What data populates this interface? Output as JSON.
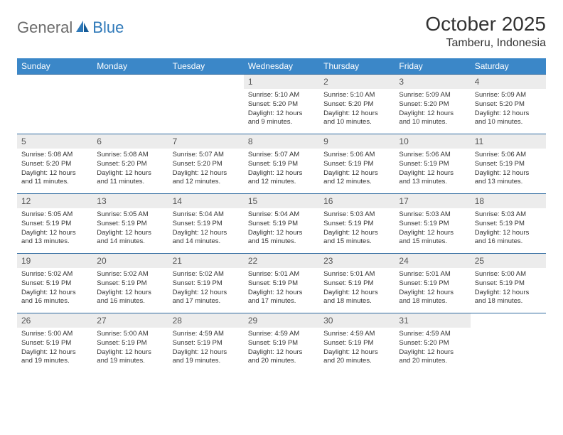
{
  "logo": {
    "part1": "General",
    "part2": "Blue"
  },
  "title": "October 2025",
  "location": "Tamberu, Indonesia",
  "colors": {
    "header_bg": "#3b87c8",
    "row_divider": "#2f6aa0",
    "daynum_bg": "#ececec",
    "logo_gray": "#6b6b6b",
    "logo_blue": "#2f79b9"
  },
  "weekdays": [
    "Sunday",
    "Monday",
    "Tuesday",
    "Wednesday",
    "Thursday",
    "Friday",
    "Saturday"
  ],
  "weeks": [
    [
      {
        "n": "",
        "lines": []
      },
      {
        "n": "",
        "lines": []
      },
      {
        "n": "",
        "lines": []
      },
      {
        "n": "1",
        "lines": [
          "Sunrise: 5:10 AM",
          "Sunset: 5:20 PM",
          "Daylight: 12 hours",
          "and 9 minutes."
        ]
      },
      {
        "n": "2",
        "lines": [
          "Sunrise: 5:10 AM",
          "Sunset: 5:20 PM",
          "Daylight: 12 hours",
          "and 10 minutes."
        ]
      },
      {
        "n": "3",
        "lines": [
          "Sunrise: 5:09 AM",
          "Sunset: 5:20 PM",
          "Daylight: 12 hours",
          "and 10 minutes."
        ]
      },
      {
        "n": "4",
        "lines": [
          "Sunrise: 5:09 AM",
          "Sunset: 5:20 PM",
          "Daylight: 12 hours",
          "and 10 minutes."
        ]
      }
    ],
    [
      {
        "n": "5",
        "lines": [
          "Sunrise: 5:08 AM",
          "Sunset: 5:20 PM",
          "Daylight: 12 hours",
          "and 11 minutes."
        ]
      },
      {
        "n": "6",
        "lines": [
          "Sunrise: 5:08 AM",
          "Sunset: 5:20 PM",
          "Daylight: 12 hours",
          "and 11 minutes."
        ]
      },
      {
        "n": "7",
        "lines": [
          "Sunrise: 5:07 AM",
          "Sunset: 5:20 PM",
          "Daylight: 12 hours",
          "and 12 minutes."
        ]
      },
      {
        "n": "8",
        "lines": [
          "Sunrise: 5:07 AM",
          "Sunset: 5:19 PM",
          "Daylight: 12 hours",
          "and 12 minutes."
        ]
      },
      {
        "n": "9",
        "lines": [
          "Sunrise: 5:06 AM",
          "Sunset: 5:19 PM",
          "Daylight: 12 hours",
          "and 12 minutes."
        ]
      },
      {
        "n": "10",
        "lines": [
          "Sunrise: 5:06 AM",
          "Sunset: 5:19 PM",
          "Daylight: 12 hours",
          "and 13 minutes."
        ]
      },
      {
        "n": "11",
        "lines": [
          "Sunrise: 5:06 AM",
          "Sunset: 5:19 PM",
          "Daylight: 12 hours",
          "and 13 minutes."
        ]
      }
    ],
    [
      {
        "n": "12",
        "lines": [
          "Sunrise: 5:05 AM",
          "Sunset: 5:19 PM",
          "Daylight: 12 hours",
          "and 13 minutes."
        ]
      },
      {
        "n": "13",
        "lines": [
          "Sunrise: 5:05 AM",
          "Sunset: 5:19 PM",
          "Daylight: 12 hours",
          "and 14 minutes."
        ]
      },
      {
        "n": "14",
        "lines": [
          "Sunrise: 5:04 AM",
          "Sunset: 5:19 PM",
          "Daylight: 12 hours",
          "and 14 minutes."
        ]
      },
      {
        "n": "15",
        "lines": [
          "Sunrise: 5:04 AM",
          "Sunset: 5:19 PM",
          "Daylight: 12 hours",
          "and 15 minutes."
        ]
      },
      {
        "n": "16",
        "lines": [
          "Sunrise: 5:03 AM",
          "Sunset: 5:19 PM",
          "Daylight: 12 hours",
          "and 15 minutes."
        ]
      },
      {
        "n": "17",
        "lines": [
          "Sunrise: 5:03 AM",
          "Sunset: 5:19 PM",
          "Daylight: 12 hours",
          "and 15 minutes."
        ]
      },
      {
        "n": "18",
        "lines": [
          "Sunrise: 5:03 AM",
          "Sunset: 5:19 PM",
          "Daylight: 12 hours",
          "and 16 minutes."
        ]
      }
    ],
    [
      {
        "n": "19",
        "lines": [
          "Sunrise: 5:02 AM",
          "Sunset: 5:19 PM",
          "Daylight: 12 hours",
          "and 16 minutes."
        ]
      },
      {
        "n": "20",
        "lines": [
          "Sunrise: 5:02 AM",
          "Sunset: 5:19 PM",
          "Daylight: 12 hours",
          "and 16 minutes."
        ]
      },
      {
        "n": "21",
        "lines": [
          "Sunrise: 5:02 AM",
          "Sunset: 5:19 PM",
          "Daylight: 12 hours",
          "and 17 minutes."
        ]
      },
      {
        "n": "22",
        "lines": [
          "Sunrise: 5:01 AM",
          "Sunset: 5:19 PM",
          "Daylight: 12 hours",
          "and 17 minutes."
        ]
      },
      {
        "n": "23",
        "lines": [
          "Sunrise: 5:01 AM",
          "Sunset: 5:19 PM",
          "Daylight: 12 hours",
          "and 18 minutes."
        ]
      },
      {
        "n": "24",
        "lines": [
          "Sunrise: 5:01 AM",
          "Sunset: 5:19 PM",
          "Daylight: 12 hours",
          "and 18 minutes."
        ]
      },
      {
        "n": "25",
        "lines": [
          "Sunrise: 5:00 AM",
          "Sunset: 5:19 PM",
          "Daylight: 12 hours",
          "and 18 minutes."
        ]
      }
    ],
    [
      {
        "n": "26",
        "lines": [
          "Sunrise: 5:00 AM",
          "Sunset: 5:19 PM",
          "Daylight: 12 hours",
          "and 19 minutes."
        ]
      },
      {
        "n": "27",
        "lines": [
          "Sunrise: 5:00 AM",
          "Sunset: 5:19 PM",
          "Daylight: 12 hours",
          "and 19 minutes."
        ]
      },
      {
        "n": "28",
        "lines": [
          "Sunrise: 4:59 AM",
          "Sunset: 5:19 PM",
          "Daylight: 12 hours",
          "and 19 minutes."
        ]
      },
      {
        "n": "29",
        "lines": [
          "Sunrise: 4:59 AM",
          "Sunset: 5:19 PM",
          "Daylight: 12 hours",
          "and 20 minutes."
        ]
      },
      {
        "n": "30",
        "lines": [
          "Sunrise: 4:59 AM",
          "Sunset: 5:19 PM",
          "Daylight: 12 hours",
          "and 20 minutes."
        ]
      },
      {
        "n": "31",
        "lines": [
          "Sunrise: 4:59 AM",
          "Sunset: 5:20 PM",
          "Daylight: 12 hours",
          "and 20 minutes."
        ]
      },
      {
        "n": "",
        "lines": []
      }
    ]
  ]
}
